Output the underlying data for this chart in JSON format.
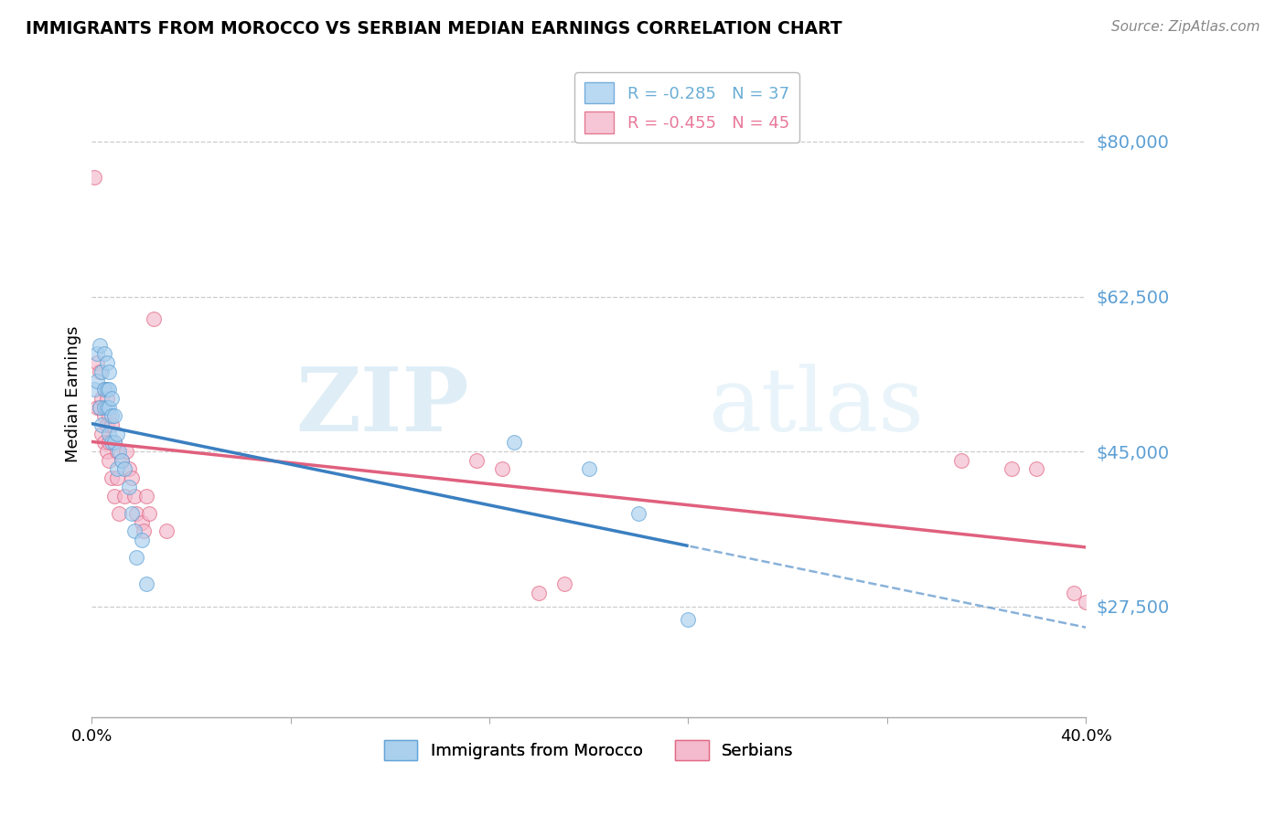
{
  "title": "IMMIGRANTS FROM MOROCCO VS SERBIAN MEDIAN EARNINGS CORRELATION CHART",
  "source": "Source: ZipAtlas.com",
  "ylabel": "Median Earnings",
  "y_ticks": [
    27500,
    45000,
    62500,
    80000
  ],
  "y_tick_labels": [
    "$27,500",
    "$45,000",
    "$62,500",
    "$80,000"
  ],
  "xmin": 0.0,
  "xmax": 0.4,
  "ymin": 15000,
  "ymax": 88000,
  "legend_entries": [
    {
      "label": "R = -0.285   N = 37",
      "color": "#6baed6"
    },
    {
      "label": "R = -0.455   N = 45",
      "color": "#e8789a"
    }
  ],
  "watermark_zip": "ZIP",
  "watermark_atlas": "atlas",
  "background_color": "#ffffff",
  "grid_color": "#cccccc",
  "morocco_x": [
    0.001,
    0.002,
    0.002,
    0.003,
    0.003,
    0.004,
    0.004,
    0.005,
    0.005,
    0.005,
    0.006,
    0.006,
    0.006,
    0.007,
    0.007,
    0.007,
    0.007,
    0.008,
    0.008,
    0.008,
    0.009,
    0.009,
    0.01,
    0.01,
    0.011,
    0.012,
    0.013,
    0.015,
    0.016,
    0.017,
    0.018,
    0.02,
    0.022,
    0.17,
    0.2,
    0.22,
    0.24
  ],
  "morocco_y": [
    52000,
    56000,
    53000,
    57000,
    50000,
    54000,
    48000,
    56000,
    52000,
    50000,
    55000,
    52000,
    50000,
    54000,
    52000,
    50000,
    47000,
    51000,
    49000,
    46000,
    49000,
    46000,
    47000,
    43000,
    45000,
    44000,
    43000,
    41000,
    38000,
    36000,
    33000,
    35000,
    30000,
    46000,
    43000,
    38000,
    26000
  ],
  "serbian_x": [
    0.001,
    0.002,
    0.002,
    0.003,
    0.003,
    0.004,
    0.004,
    0.005,
    0.005,
    0.005,
    0.006,
    0.006,
    0.006,
    0.007,
    0.007,
    0.007,
    0.008,
    0.008,
    0.009,
    0.009,
    0.01,
    0.01,
    0.011,
    0.012,
    0.013,
    0.014,
    0.015,
    0.016,
    0.017,
    0.018,
    0.02,
    0.021,
    0.022,
    0.023,
    0.025,
    0.03,
    0.155,
    0.165,
    0.18,
    0.19,
    0.35,
    0.37,
    0.38,
    0.395,
    0.4
  ],
  "serbian_y": [
    76000,
    55000,
    50000,
    54000,
    50000,
    51000,
    47000,
    52000,
    49000,
    46000,
    51000,
    48000,
    45000,
    49000,
    46000,
    44000,
    48000,
    42000,
    46000,
    40000,
    45000,
    42000,
    38000,
    44000,
    40000,
    45000,
    43000,
    42000,
    40000,
    38000,
    37000,
    36000,
    40000,
    38000,
    60000,
    36000,
    44000,
    43000,
    29000,
    30000,
    44000,
    43000,
    43000,
    29000,
    28000
  ],
  "morocco_color": "#a8cfee",
  "moroccan_edge": "#5b9fd4",
  "serbian_color": "#f4b8cc",
  "serbian_edge": "#e0607e",
  "morocco_line_color": "#3a7fc1",
  "serbian_line_color": "#e0607e",
  "scatter_alpha": 0.65,
  "marker_size": 130
}
